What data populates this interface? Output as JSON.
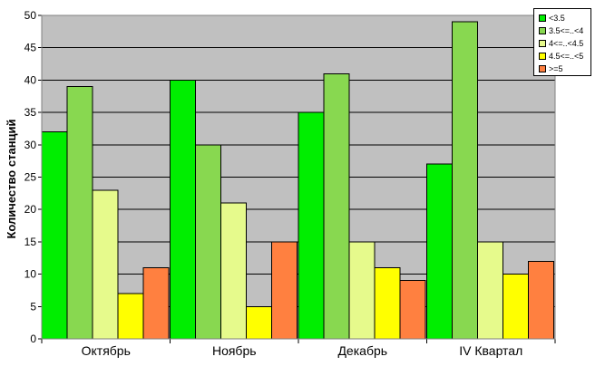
{
  "chart_data": {
    "type": "bar",
    "title": "",
    "xlabel": "",
    "ylabel": "Количество станций",
    "ylim": [
      0,
      50
    ],
    "yticks": [
      0,
      5,
      10,
      15,
      20,
      25,
      30,
      35,
      40,
      45,
      50
    ],
    "categories": [
      "Октябрь",
      "Ноябрь",
      "Декабрь",
      "IV Квартал"
    ],
    "series": [
      {
        "name": "<3.5",
        "color": "#00ee00",
        "values": [
          32,
          40,
          35,
          27
        ]
      },
      {
        "name": "3.5<=..<4",
        "color": "#88d850",
        "values": [
          39,
          30,
          41,
          49
        ]
      },
      {
        "name": "4<=..<4.5",
        "color": "#e6fa8c",
        "values": [
          23,
          21,
          15,
          15
        ]
      },
      {
        "name": "4.5<=..<5",
        "color": "#ffff00",
        "values": [
          7,
          5,
          11,
          10
        ]
      },
      {
        "name": ">=5",
        "color": "#ff8040",
        "values": [
          11,
          15,
          9,
          12
        ]
      }
    ],
    "grid": true,
    "plot_background": "#c0c0c0",
    "legend_position": "top-right"
  }
}
